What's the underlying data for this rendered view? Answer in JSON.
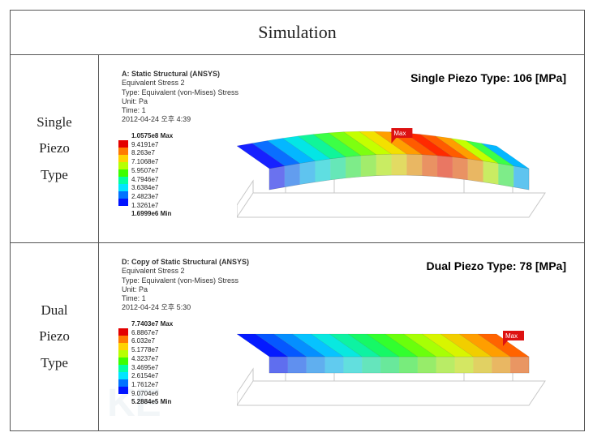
{
  "title": "Simulation",
  "rows": [
    {
      "label": "Single\nPiezo\nType",
      "badge": "Single Piezo Type: 106 [MPa]",
      "meta": {
        "title": "A: Static Structural (ANSYS)",
        "sub1": "Equivalent Stress 2",
        "sub2": "Type: Equivalent (von-Mises) Stress",
        "sub3": "Unit: Pa",
        "sub4": "Time: 1",
        "sub5": "2012-04-24 오후 4:39"
      },
      "legend": {
        "max": "1.0575e8 Max",
        "v1": "9.4191e7",
        "v2": "8.263e7",
        "v3": "7.1068e7",
        "v4": "5.9507e7",
        "v5": "4.7946e7",
        "v6": "3.6384e7",
        "v7": "2.4823e7",
        "v8": "1.3261e7",
        "min": "1.6999e6 Min",
        "colors": [
          "#e30000",
          "#ff7a00",
          "#ffd200",
          "#b7ff00",
          "#3cff00",
          "#00ffa2",
          "#00e5ff",
          "#0072ff",
          "#0013ff"
        ]
      },
      "beam": {
        "curved": true,
        "height": 26,
        "segments": 17,
        "colors": [
          "#1721ff",
          "#0a6fff",
          "#04b7ff",
          "#04e6e5",
          "#10f59a",
          "#3cff46",
          "#7dff10",
          "#c4ff00",
          "#f3e000",
          "#ff9e00",
          "#ff5b00",
          "#ff2a00",
          "#ff5b00",
          "#ff9e00",
          "#c4ff00",
          "#3cff46",
          "#04b7ff"
        ],
        "maxX": 0.52
      }
    },
    {
      "label": "Dual\nPiezo\nType",
      "badge": "Dual Piezo Type: 78 [MPa]",
      "meta": {
        "title": "D: Copy of Static Structural (ANSYS)",
        "sub1": "Equivalent Stress 2",
        "sub2": "Type: Equivalent (von-Mises) Stress",
        "sub3": "Unit: Pa",
        "sub4": "Time: 1",
        "sub5": "2012-04-24 오후 5:30"
      },
      "legend": {
        "max": "7.7403e7 Max",
        "v1": "6.8867e7",
        "v2": "6.032e7",
        "v3": "5.1778e7",
        "v4": "4.3237e7",
        "v5": "3.4695e7",
        "v6": "2.6154e7",
        "v7": "1.7612e7",
        "v8": "9.0704e6",
        "min": "5.2884e5 Min",
        "colors": [
          "#e30000",
          "#ff7a00",
          "#ffd200",
          "#b7ff00",
          "#3cff00",
          "#00ffa2",
          "#00e5ff",
          "#0072ff",
          "#0013ff"
        ]
      },
      "beam": {
        "curved": false,
        "height": 20,
        "segments": 14,
        "colors": [
          "#041aff",
          "#0558ff",
          "#058fff",
          "#07c3ff",
          "#09e8e0",
          "#0ef2a2",
          "#16f866",
          "#32ff2e",
          "#6aff0c",
          "#a7ff05",
          "#d8f500",
          "#f1ce00",
          "#ff9e00",
          "#ff6300"
        ],
        "maxX": 0.95
      }
    }
  ]
}
